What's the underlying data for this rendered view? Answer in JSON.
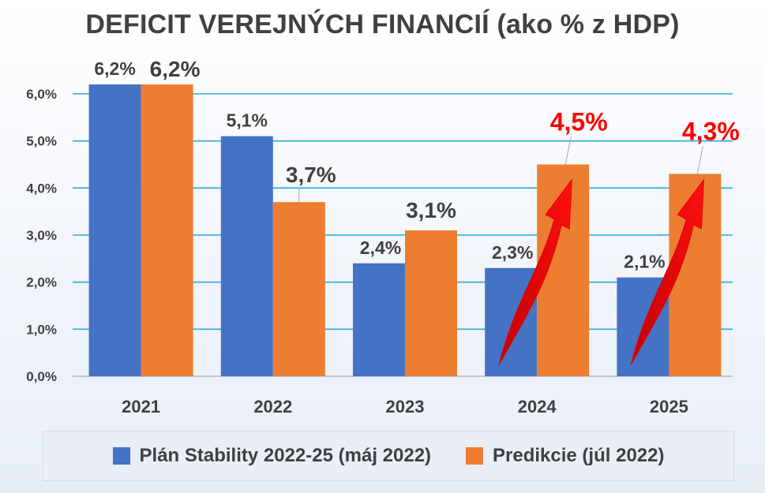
{
  "chart_data": {
    "type": "bar",
    "title": "DEFICIT VEREJNÝCH FINANCIÍ (ako % z HDP)",
    "categories": [
      "2021",
      "2022",
      "2023",
      "2024",
      "2025"
    ],
    "series": [
      {
        "name": "Plán Stability 2022-25 (máj 2022)",
        "color": "#4472c4",
        "values": [
          6.2,
          5.1,
          2.4,
          2.3,
          2.1
        ],
        "labels": [
          "6,2%",
          "5,1%",
          "2,4%",
          "2,3%",
          "2,1%"
        ]
      },
      {
        "name": "Predikcie (júl 2022)",
        "color": "#ed7d31",
        "values": [
          6.2,
          3.7,
          3.1,
          4.5,
          4.3
        ],
        "labels": [
          "6,2%",
          "3,7%",
          "3,1%",
          "4,5%",
          "4,3%"
        ],
        "highlight_label_color": "#ff0000",
        "highlight_categories": [
          "2024",
          "2025"
        ]
      }
    ],
    "ylim": [
      0,
      6
    ],
    "yticks": [
      "0,0%",
      "1,0%",
      "2,0%",
      "3,0%",
      "4,0%",
      "5,0%",
      "6,0%"
    ],
    "grid": true,
    "gridline_color": "#2ea8e0",
    "legend_position": "bottom",
    "annotations": [
      {
        "type": "arrow-up",
        "category": "2024",
        "color": "#ff0000"
      },
      {
        "type": "arrow-up",
        "category": "2025",
        "color": "#ff0000"
      }
    ]
  }
}
